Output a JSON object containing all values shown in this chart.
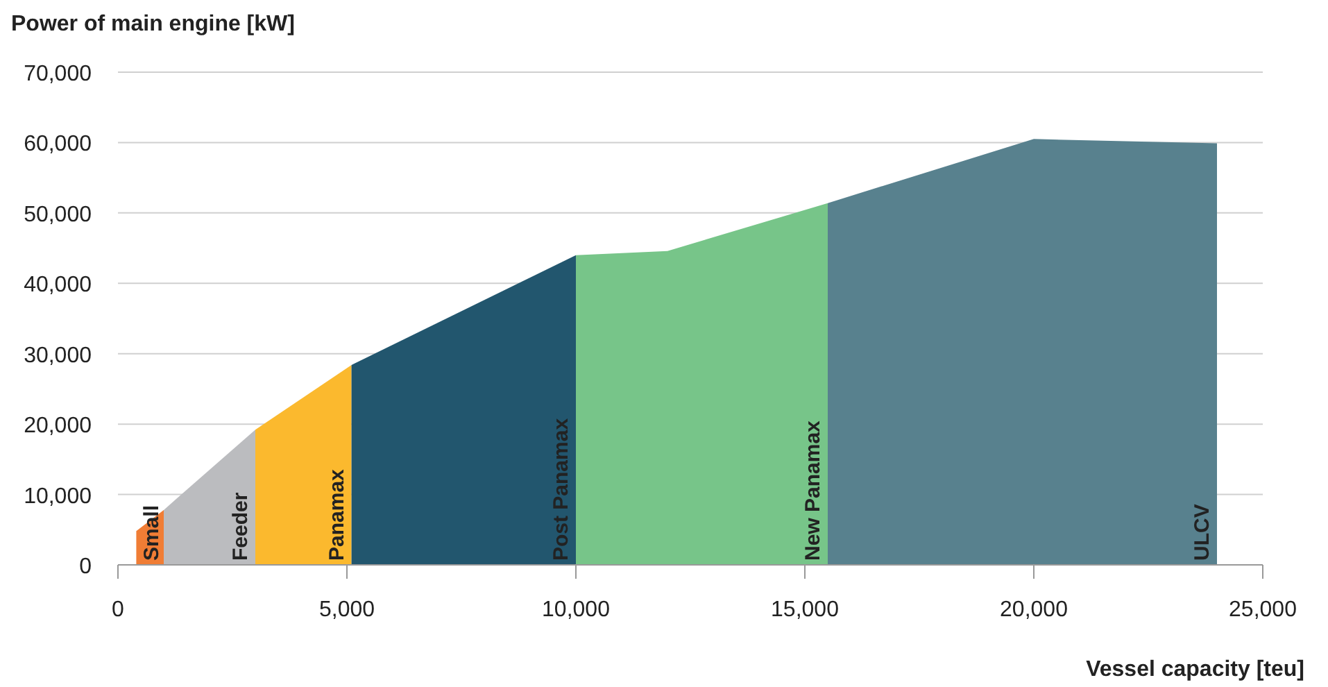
{
  "chart_data": {
    "type": "area",
    "ylabel": "Power of main engine [kW]",
    "xlabel": "Vessel capacity [teu]",
    "xlim": [
      0,
      25000
    ],
    "xticks": [
      {
        "value": 0,
        "label": "0"
      },
      {
        "value": 5000,
        "label": "5,000"
      },
      {
        "value": 10000,
        "label": "10,000"
      },
      {
        "value": 15000,
        "label": "15,000"
      },
      {
        "value": 20000,
        "label": "20,000"
      },
      {
        "value": 25000,
        "label": "25,000"
      }
    ],
    "ylim": [
      0,
      70000
    ],
    "yticks": [
      {
        "value": 0,
        "label": "0"
      },
      {
        "value": 10000,
        "label": "10,000"
      },
      {
        "value": 20000,
        "label": "20,000"
      },
      {
        "value": 30000,
        "label": "30,000"
      },
      {
        "value": 40000,
        "label": "40,000"
      },
      {
        "value": 50000,
        "label": "50,000"
      },
      {
        "value": 60000,
        "label": "60,000"
      },
      {
        "value": 70000,
        "label": "70,000"
      }
    ],
    "grid": "y",
    "series": [
      {
        "name": "Small",
        "color": "#f07d35",
        "x": [
          400,
          1000
        ],
        "values": [
          4800,
          7800
        ]
      },
      {
        "name": "Feeder",
        "color": "#bbbcbf",
        "x": [
          1000,
          3000
        ],
        "values": [
          7800,
          19200
        ]
      },
      {
        "name": "Panamax",
        "color": "#fbb92e",
        "x": [
          3000,
          5100
        ],
        "values": [
          19200,
          28400
        ]
      },
      {
        "name": "Post Panamax",
        "color": "#22566e",
        "x": [
          5100,
          10000
        ],
        "values": [
          28400,
          44000
        ]
      },
      {
        "name": "New Panamax",
        "color": "#77c589",
        "x": [
          10000,
          12000,
          15500
        ],
        "values": [
          44000,
          44600,
          51400
        ]
      },
      {
        "name": "ULCV",
        "color": "#58818e",
        "x": [
          15500,
          20000,
          24000
        ],
        "values": [
          51400,
          60500,
          59900
        ]
      }
    ]
  }
}
